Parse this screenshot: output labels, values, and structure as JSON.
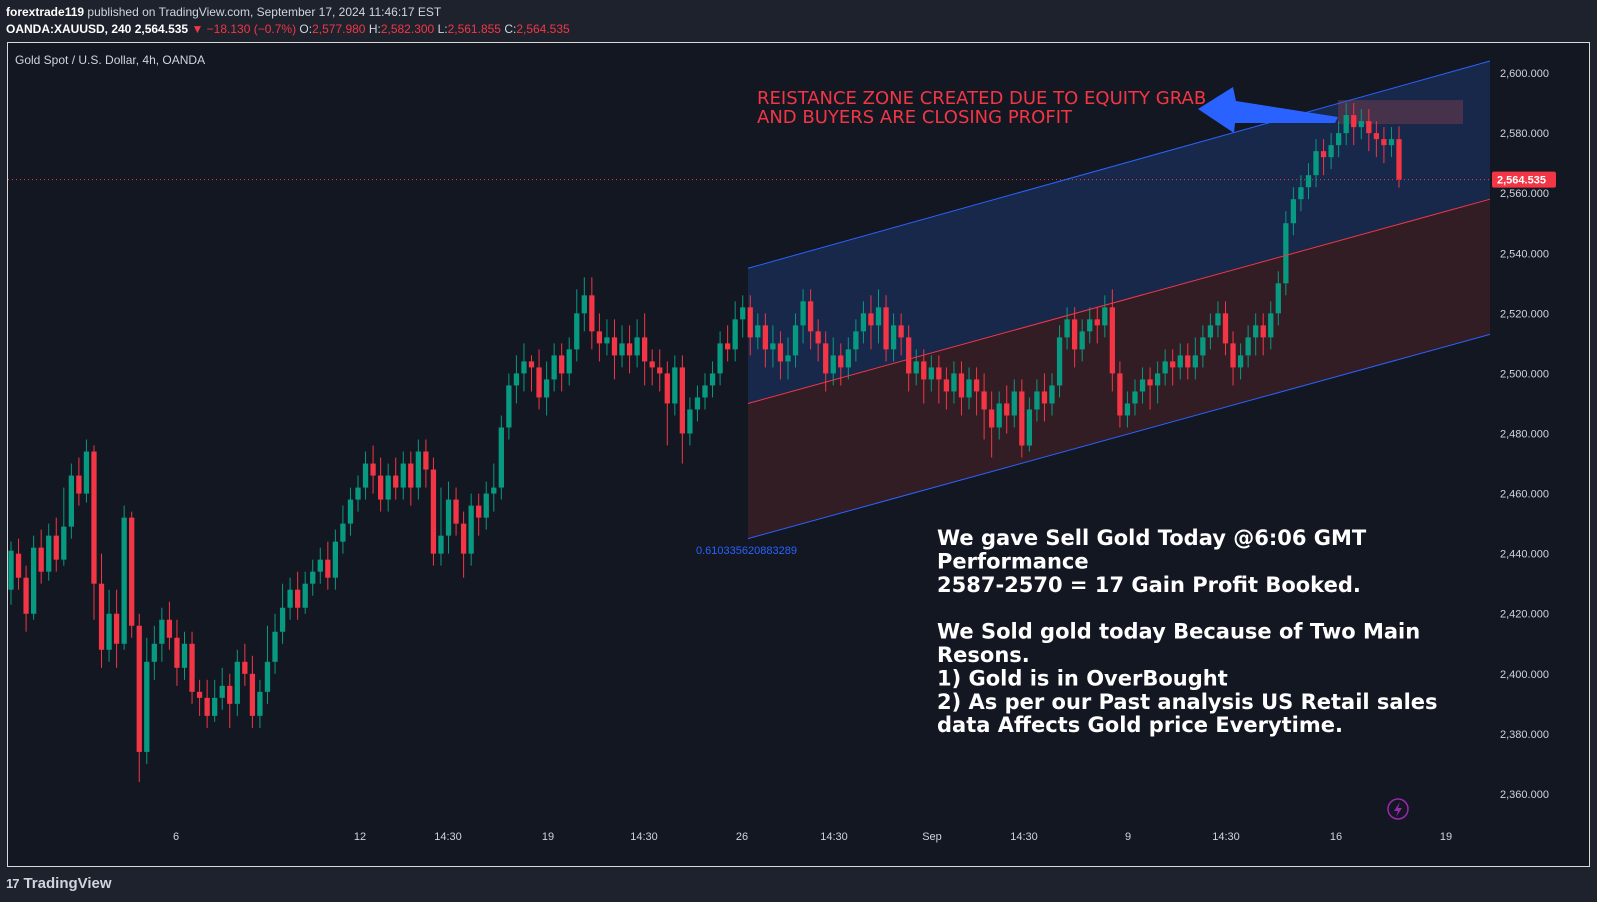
{
  "header": {
    "author": "forextrade119",
    "published": "published on TradingView.com, September 17, 2024 11:46:17 EST",
    "symbol": "OANDA:XAUUSD, 240",
    "last_price": "2,564.535",
    "change_arrow": "▼",
    "change": "−18.130 (−0.7%)",
    "open_label": "O:",
    "open": "2,577.980",
    "high_label": "H:",
    "high": "2,582.300",
    "low_label": "L:",
    "low": "2,561.855",
    "close_label": "C:",
    "close": "2,564.535"
  },
  "chart_title": "Gold Spot / U.S. Dollar, 4h, OANDA",
  "footer": {
    "brand": "TradingView",
    "logo_icon": "tradingview-logo-icon"
  },
  "colors": {
    "background": "#131722",
    "up": "#089981",
    "down": "#f23645",
    "channel_line": "#2962ff",
    "median_line": "#f23645",
    "upper_fill": "#1a2c52",
    "lower_fill": "#3a1f26",
    "annotation_red": "#f23645",
    "arrow": "#2962ff",
    "text": "#ffffff"
  },
  "chart_data": {
    "type": "candlestick",
    "ylim": [
      2352,
      2610
    ],
    "y_ticks": [
      "2,600.000",
      "2,580.000",
      "2,560.000",
      "2,540.000",
      "2,520.000",
      "2,500.000",
      "2,480.000",
      "2,460.000",
      "2,440.000",
      "2,420.000",
      "2,400.000",
      "2,380.000",
      "2,360.000"
    ],
    "x_ticks": [
      "6",
      "12",
      "14:30",
      "19",
      "14:30",
      "26",
      "14:30",
      "Sep",
      "14:30",
      "9",
      "14:30",
      "16",
      "19"
    ],
    "current_price_label": "2,564.535",
    "current_price": 2564.535,
    "fib_label": "0.610335620883289",
    "annotation": "REISTANCE ZONE CREATED DUE TO EQUITY GRAB\nAND BUYERS ARE CLOSING PROFIT",
    "note_lines": [
      "We gave Sell Gold Today @6:06 GMT",
      "Performance",
      "2587-2570 = 17 Gain Profit Booked.",
      "",
      "We Sold gold today Because of Two Main",
      "Resons.",
      "1) Gold is in OverBought",
      "2) As per our Past analysis US Retail sales",
      "data Affects Gold price Everytime."
    ],
    "channel": {
      "upper_start": 2535,
      "upper_end": 2604,
      "median_start": 2490,
      "median_end": 2558,
      "lower_start": 2445,
      "lower_end": 2513
    },
    "resistance_zone": [
      2583,
      2591
    ],
    "candles": [
      [
        2428,
        2441,
        2423,
        2444
      ],
      [
        2440,
        2432,
        2428,
        2445
      ],
      [
        2432,
        2420,
        2414,
        2436
      ],
      [
        2420,
        2442,
        2418,
        2446
      ],
      [
        2442,
        2434,
        2430,
        2448
      ],
      [
        2434,
        2446,
        2431,
        2450
      ],
      [
        2446,
        2438,
        2434,
        2452
      ],
      [
        2438,
        2449,
        2436,
        2462
      ],
      [
        2449,
        2466,
        2445,
        2470
      ],
      [
        2466,
        2460,
        2456,
        2472
      ],
      [
        2460,
        2474,
        2457,
        2478
      ],
      [
        2474,
        2430,
        2418,
        2476
      ],
      [
        2430,
        2408,
        2402,
        2440
      ],
      [
        2408,
        2420,
        2404,
        2428
      ],
      [
        2420,
        2410,
        2402,
        2428
      ],
      [
        2410,
        2452,
        2408,
        2456
      ],
      [
        2452,
        2416,
        2412,
        2454
      ],
      [
        2416,
        2374,
        2364,
        2420
      ],
      [
        2374,
        2404,
        2370,
        2412
      ],
      [
        2404,
        2410,
        2398,
        2416
      ],
      [
        2410,
        2418,
        2404,
        2422
      ],
      [
        2418,
        2412,
        2408,
        2424
      ],
      [
        2412,
        2402,
        2396,
        2418
      ],
      [
        2402,
        2410,
        2398,
        2414
      ],
      [
        2410,
        2394,
        2390,
        2414
      ],
      [
        2394,
        2392,
        2386,
        2398
      ],
      [
        2392,
        2386,
        2382,
        2398
      ],
      [
        2386,
        2392,
        2384,
        2398
      ],
      [
        2392,
        2396,
        2388,
        2402
      ],
      [
        2396,
        2390,
        2382,
        2400
      ],
      [
        2390,
        2404,
        2386,
        2408
      ],
      [
        2404,
        2400,
        2396,
        2410
      ],
      [
        2400,
        2386,
        2382,
        2406
      ],
      [
        2386,
        2394,
        2382,
        2398
      ],
      [
        2394,
        2404,
        2390,
        2416
      ],
      [
        2404,
        2414,
        2400,
        2420
      ],
      [
        2414,
        2422,
        2410,
        2430
      ],
      [
        2422,
        2428,
        2418,
        2432
      ],
      [
        2428,
        2422,
        2418,
        2434
      ],
      [
        2422,
        2430,
        2420,
        2434
      ],
      [
        2430,
        2434,
        2426,
        2438
      ],
      [
        2434,
        2438,
        2430,
        2442
      ],
      [
        2438,
        2432,
        2428,
        2444
      ],
      [
        2432,
        2444,
        2428,
        2448
      ],
      [
        2444,
        2450,
        2440,
        2456
      ],
      [
        2450,
        2458,
        2446,
        2462
      ],
      [
        2458,
        2462,
        2454,
        2466
      ],
      [
        2462,
        2470,
        2458,
        2474
      ],
      [
        2470,
        2466,
        2460,
        2476
      ],
      [
        2466,
        2458,
        2454,
        2472
      ],
      [
        2458,
        2466,
        2454,
        2470
      ],
      [
        2466,
        2462,
        2458,
        2472
      ],
      [
        2462,
        2470,
        2458,
        2474
      ],
      [
        2470,
        2462,
        2456,
        2474
      ],
      [
        2462,
        2474,
        2458,
        2478
      ],
      [
        2474,
        2468,
        2462,
        2478
      ],
      [
        2468,
        2440,
        2436,
        2472
      ],
      [
        2440,
        2446,
        2436,
        2462
      ],
      [
        2446,
        2458,
        2440,
        2464
      ],
      [
        2458,
        2450,
        2446,
        2462
      ],
      [
        2450,
        2440,
        2432,
        2454
      ],
      [
        2440,
        2456,
        2436,
        2460
      ],
      [
        2456,
        2452,
        2446,
        2460
      ],
      [
        2452,
        2460,
        2448,
        2464
      ],
      [
        2460,
        2462,
        2454,
        2470
      ],
      [
        2462,
        2482,
        2458,
        2486
      ],
      [
        2482,
        2496,
        2478,
        2500
      ],
      [
        2496,
        2500,
        2490,
        2506
      ],
      [
        2500,
        2504,
        2494,
        2510
      ],
      [
        2504,
        2502,
        2494,
        2506
      ],
      [
        2502,
        2492,
        2488,
        2508
      ],
      [
        2492,
        2498,
        2486,
        2504
      ],
      [
        2498,
        2506,
        2494,
        2510
      ],
      [
        2506,
        2500,
        2494,
        2510
      ],
      [
        2500,
        2508,
        2496,
        2512
      ],
      [
        2508,
        2520,
        2504,
        2528
      ],
      [
        2520,
        2526,
        2514,
        2532
      ],
      [
        2526,
        2514,
        2508,
        2532
      ],
      [
        2514,
        2510,
        2504,
        2520
      ],
      [
        2510,
        2512,
        2506,
        2518
      ],
      [
        2512,
        2506,
        2498,
        2518
      ],
      [
        2506,
        2510,
        2502,
        2516
      ],
      [
        2510,
        2506,
        2500,
        2516
      ],
      [
        2506,
        2512,
        2502,
        2518
      ],
      [
        2512,
        2504,
        2496,
        2520
      ],
      [
        2504,
        2502,
        2496,
        2508
      ],
      [
        2502,
        2500,
        2494,
        2508
      ],
      [
        2500,
        2490,
        2476,
        2504
      ],
      [
        2490,
        2502,
        2486,
        2506
      ],
      [
        2502,
        2480,
        2470,
        2506
      ],
      [
        2480,
        2488,
        2476,
        2492
      ],
      [
        2488,
        2492,
        2484,
        2496
      ],
      [
        2492,
        2496,
        2488,
        2500
      ],
      [
        2496,
        2500,
        2492,
        2504
      ],
      [
        2500,
        2510,
        2496,
        2514
      ],
      [
        2510,
        2508,
        2504,
        2516
      ],
      [
        2508,
        2518,
        2504,
        2524
      ],
      [
        2518,
        2522,
        2512,
        2526
      ],
      [
        2522,
        2512,
        2506,
        2526
      ],
      [
        2512,
        2516,
        2508,
        2520
      ],
      [
        2516,
        2508,
        2502,
        2520
      ],
      [
        2508,
        2510,
        2502,
        2516
      ],
      [
        2510,
        2504,
        2498,
        2514
      ],
      [
        2504,
        2506,
        2498,
        2512
      ],
      [
        2506,
        2516,
        2502,
        2520
      ],
      [
        2516,
        2524,
        2510,
        2528
      ],
      [
        2524,
        2514,
        2508,
        2528
      ],
      [
        2514,
        2510,
        2504,
        2518
      ],
      [
        2510,
        2500,
        2494,
        2514
      ],
      [
        2500,
        2506,
        2496,
        2512
      ],
      [
        2506,
        2502,
        2496,
        2510
      ],
      [
        2502,
        2508,
        2498,
        2512
      ],
      [
        2508,
        2514,
        2504,
        2518
      ],
      [
        2514,
        2520,
        2510,
        2524
      ],
      [
        2520,
        2516,
        2508,
        2526
      ],
      [
        2516,
        2522,
        2510,
        2528
      ],
      [
        2522,
        2508,
        2504,
        2526
      ],
      [
        2508,
        2516,
        2504,
        2520
      ],
      [
        2516,
        2512,
        2506,
        2520
      ],
      [
        2512,
        2500,
        2494,
        2516
      ],
      [
        2500,
        2504,
        2496,
        2508
      ],
      [
        2504,
        2498,
        2490,
        2508
      ],
      [
        2498,
        2502,
        2494,
        2506
      ],
      [
        2502,
        2498,
        2490,
        2506
      ],
      [
        2498,
        2494,
        2488,
        2502
      ],
      [
        2494,
        2500,
        2490,
        2504
      ],
      [
        2500,
        2492,
        2486,
        2504
      ],
      [
        2492,
        2498,
        2488,
        2502
      ],
      [
        2498,
        2494,
        2486,
        2502
      ],
      [
        2494,
        2488,
        2478,
        2500
      ],
      [
        2488,
        2482,
        2472,
        2494
      ],
      [
        2482,
        2490,
        2478,
        2494
      ],
      [
        2490,
        2486,
        2480,
        2496
      ],
      [
        2486,
        2494,
        2482,
        2498
      ],
      [
        2494,
        2476,
        2472,
        2498
      ],
      [
        2476,
        2488,
        2474,
        2492
      ],
      [
        2488,
        2494,
        2484,
        2498
      ],
      [
        2494,
        2490,
        2484,
        2500
      ],
      [
        2490,
        2496,
        2486,
        2500
      ],
      [
        2496,
        2512,
        2492,
        2516
      ],
      [
        2512,
        2518,
        2508,
        2522
      ],
      [
        2518,
        2508,
        2502,
        2522
      ],
      [
        2508,
        2514,
        2504,
        2518
      ],
      [
        2514,
        2518,
        2510,
        2522
      ],
      [
        2518,
        2516,
        2510,
        2522
      ],
      [
        2516,
        2522,
        2512,
        2526
      ],
      [
        2522,
        2500,
        2494,
        2528
      ],
      [
        2500,
        2486,
        2482,
        2504
      ],
      [
        2486,
        2490,
        2482,
        2494
      ],
      [
        2490,
        2494,
        2486,
        2498
      ],
      [
        2494,
        2498,
        2490,
        2502
      ],
      [
        2498,
        2496,
        2488,
        2502
      ],
      [
        2496,
        2500,
        2490,
        2504
      ],
      [
        2500,
        2504,
        2496,
        2508
      ],
      [
        2504,
        2502,
        2496,
        2508
      ],
      [
        2502,
        2506,
        2498,
        2510
      ],
      [
        2506,
        2502,
        2498,
        2510
      ],
      [
        2502,
        2506,
        2498,
        2512
      ],
      [
        2506,
        2512,
        2502,
        2516
      ],
      [
        2512,
        2516,
        2508,
        2520
      ],
      [
        2516,
        2520,
        2512,
        2524
      ],
      [
        2520,
        2510,
        2506,
        2524
      ],
      [
        2510,
        2502,
        2496,
        2514
      ],
      [
        2502,
        2506,
        2498,
        2510
      ],
      [
        2506,
        2512,
        2502,
        2516
      ],
      [
        2512,
        2516,
        2506,
        2520
      ],
      [
        2516,
        2512,
        2506,
        2520
      ],
      [
        2512,
        2520,
        2508,
        2524
      ],
      [
        2520,
        2530,
        2516,
        2534
      ],
      [
        2530,
        2550,
        2526,
        2554
      ],
      [
        2550,
        2558,
        2546,
        2562
      ],
      [
        2558,
        2562,
        2554,
        2566
      ],
      [
        2562,
        2566,
        2558,
        2570
      ],
      [
        2566,
        2574,
        2562,
        2578
      ],
      [
        2574,
        2572,
        2566,
        2578
      ],
      [
        2572,
        2576,
        2568,
        2580
      ],
      [
        2576,
        2580,
        2572,
        2584
      ],
      [
        2580,
        2586,
        2576,
        2590
      ],
      [
        2586,
        2582,
        2576,
        2590
      ],
      [
        2582,
        2584,
        2578,
        2588
      ],
      [
        2584,
        2580,
        2574,
        2588
      ],
      [
        2580,
        2578,
        2572,
        2584
      ],
      [
        2578,
        2576,
        2570,
        2582
      ],
      [
        2576,
        2578,
        2572,
        2582
      ],
      [
        2578,
        2564.535,
        2561.855,
        2582.3
      ]
    ]
  }
}
